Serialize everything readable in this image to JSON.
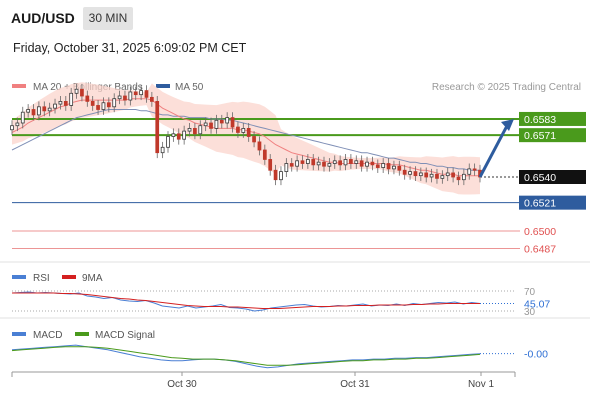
{
  "header": {
    "symbol": "AUD/USD",
    "timeframe": "30 MIN",
    "datetime": "Friday, October 31, 2025 6:09:02 PM CET"
  },
  "legend": {
    "ma20_label": "MA 20 + Bollinger Bands",
    "ma20_color": "#f08080",
    "ma50_label": "MA 50",
    "ma50_color": "#2e5c9e",
    "research": "Research © 2025 Trading Central"
  },
  "chart_data": [
    {
      "type": "candlestick",
      "title": "AUD/USD",
      "ylim": [
        0.648,
        0.66
      ],
      "x_ticks": [
        "Oct 30",
        "Oct 31",
        "Nov 1"
      ],
      "last_price": 0.654,
      "levels": [
        {
          "value": 0.6583,
          "label": "0.6583",
          "kind": "resistance",
          "color": "#4a9a1c"
        },
        {
          "value": 0.6571,
          "label": "0.6571",
          "kind": "resistance",
          "color": "#4a9a1c"
        },
        {
          "value": 0.654,
          "label": "0.6540",
          "kind": "last",
          "color": "#000000"
        },
        {
          "value": 0.6521,
          "label": "0.6521",
          "kind": "pivot",
          "color": "#2e5c9e"
        },
        {
          "value": 0.65,
          "label": "0.6500",
          "kind": "support",
          "color": "#e05050"
        },
        {
          "value": 0.6487,
          "label": "0.6487",
          "kind": "support",
          "color": "#e05050"
        }
      ],
      "closes": [
        0.6578,
        0.658,
        0.6588,
        0.659,
        0.6586,
        0.6592,
        0.6589,
        0.6591,
        0.6594,
        0.6596,
        0.6593,
        0.6602,
        0.6605,
        0.66,
        0.6596,
        0.6593,
        0.659,
        0.6595,
        0.6592,
        0.6598,
        0.66,
        0.6597,
        0.6603,
        0.6601,
        0.6604,
        0.6599,
        0.6596,
        0.6558,
        0.6562,
        0.657,
        0.6572,
        0.6568,
        0.6574,
        0.6576,
        0.6572,
        0.6578,
        0.658,
        0.6576,
        0.6582,
        0.658,
        0.6584,
        0.6577,
        0.6573,
        0.6576,
        0.657,
        0.6566,
        0.656,
        0.6553,
        0.6545,
        0.6538,
        0.6544,
        0.655,
        0.6548,
        0.6552,
        0.655,
        0.6553,
        0.6549,
        0.6551,
        0.6548,
        0.655,
        0.6552,
        0.6549,
        0.6553,
        0.655,
        0.6552,
        0.6548,
        0.6551,
        0.6549,
        0.6547,
        0.655,
        0.6546,
        0.6548,
        0.6545,
        0.6542,
        0.6544,
        0.6541,
        0.6543,
        0.654,
        0.6542,
        0.6539,
        0.6541,
        0.6543,
        0.654,
        0.6538,
        0.6542,
        0.6546,
        0.6545,
        0.654
      ],
      "ma20": [
        0.6573,
        0.6575,
        0.6577,
        0.658,
        0.6582,
        0.6584,
        0.6586,
        0.6588,
        0.659,
        0.6592,
        0.6593,
        0.6595,
        0.6596,
        0.6597,
        0.6597,
        0.6597,
        0.6597,
        0.6597,
        0.6597,
        0.6597,
        0.6597,
        0.6597,
        0.6598,
        0.6598,
        0.6598,
        0.6598,
        0.6597,
        0.6594,
        0.6591,
        0.6589,
        0.6587,
        0.6585,
        0.6583,
        0.6582,
        0.658,
        0.6579,
        0.6578,
        0.6577,
        0.6576,
        0.6576,
        0.6576,
        0.6576,
        0.6575,
        0.6575,
        0.6574,
        0.6573,
        0.6572,
        0.657,
        0.6567,
        0.6564,
        0.6562,
        0.656,
        0.6558,
        0.6557,
        0.6556,
        0.6555,
        0.6554,
        0.6553,
        0.6552,
        0.6551,
        0.6551,
        0.655,
        0.655,
        0.655,
        0.655,
        0.655,
        0.655,
        0.655,
        0.655,
        0.655,
        0.6549,
        0.6549,
        0.6549,
        0.6548,
        0.6547,
        0.6546,
        0.6545,
        0.6545,
        0.6544,
        0.6543,
        0.6542,
        0.6542,
        0.6542,
        0.6541,
        0.6541,
        0.6541,
        0.6541,
        0.6541
      ],
      "ma50": [
        0.656,
        0.6562,
        0.6564,
        0.6566,
        0.6568,
        0.657,
        0.6572,
        0.6574,
        0.6576,
        0.6578,
        0.658,
        0.6582,
        0.6584,
        0.6585,
        0.6586,
        0.6587,
        0.6588,
        0.6589,
        0.659,
        0.659,
        0.659,
        0.659,
        0.659,
        0.659,
        0.6589,
        0.6589,
        0.6588,
        0.6587,
        0.6586,
        0.6586,
        0.6585,
        0.6585,
        0.6585,
        0.6584,
        0.6584,
        0.6584,
        0.6584,
        0.6583,
        0.6583,
        0.6583,
        0.6582,
        0.6582,
        0.6581,
        0.658,
        0.6579,
        0.6578,
        0.6577,
        0.6576,
        0.6575,
        0.6574,
        0.6573,
        0.6572,
        0.6571,
        0.657,
        0.6569,
        0.6568,
        0.6567,
        0.6566,
        0.6565,
        0.6564,
        0.6563,
        0.6562,
        0.6561,
        0.656,
        0.6559,
        0.6558,
        0.6558,
        0.6557,
        0.6556,
        0.6555,
        0.6554,
        0.6554,
        0.6553,
        0.6552,
        0.6551,
        0.6551,
        0.655,
        0.655,
        0.6549,
        0.6548,
        0.6548,
        0.6547,
        0.6547,
        0.6546,
        0.6546,
        0.6545,
        0.6545,
        0.6545
      ],
      "projection_target": 0.6583
    },
    {
      "type": "line",
      "title": "RSI",
      "series": [
        {
          "name": "RSI",
          "color": "#4a7fd4",
          "values": [
            66,
            67,
            68,
            66,
            67,
            66,
            65,
            64,
            66,
            60,
            58,
            55,
            57,
            52,
            50,
            49,
            51,
            46,
            40,
            38,
            36,
            40,
            36,
            38,
            40,
            43,
            37,
            36,
            34,
            30,
            32,
            36,
            38,
            40,
            42,
            43,
            40,
            38,
            39,
            41,
            40,
            42,
            44,
            40,
            42,
            41,
            44,
            41,
            45,
            43,
            45,
            47,
            46,
            48,
            44,
            47,
            45.07
          ]
        },
        {
          "name": "9MA",
          "color": "#d42020",
          "values": [
            66,
            66,
            66,
            66,
            66,
            66,
            65,
            65,
            64,
            63,
            61,
            59,
            57,
            55,
            54,
            52,
            51,
            49,
            47,
            45,
            43,
            41,
            40,
            39,
            39,
            39,
            38,
            38,
            37,
            36,
            35,
            35,
            35,
            36,
            37,
            38,
            39,
            39,
            39,
            40,
            40,
            41,
            41,
            41,
            42,
            42,
            42,
            42,
            43,
            43,
            44,
            44,
            45,
            45,
            45,
            45,
            45
          ]
        }
      ],
      "ylim": [
        20,
        80
      ],
      "levels": [
        {
          "value": 70,
          "label": "70"
        },
        {
          "value": 30,
          "label": "30"
        }
      ],
      "last_value_label": "45.07",
      "last_value_color": "#2e6fd4"
    },
    {
      "type": "line",
      "title": "MACD",
      "series": [
        {
          "name": "MACD",
          "color": "#4a7fd4",
          "values": [
            0.0002,
            0.0003,
            0.0004,
            0.0005,
            0.0006,
            0.0007,
            0.0008,
            0.0006,
            0.0004,
            0.0002,
            -0.0001,
            -0.0004,
            -0.0007,
            -0.0009,
            -0.0011,
            -0.0012,
            -0.0012,
            -0.0011,
            -0.001,
            -0.001,
            -0.0011,
            -0.0013,
            -0.0016,
            -0.0019,
            -0.0021,
            -0.002,
            -0.0018,
            -0.0016,
            -0.0015,
            -0.0014,
            -0.0013,
            -0.0012,
            -0.0011,
            -0.0011,
            -0.001,
            -0.001,
            -0.0009,
            -0.0009,
            -0.0008,
            -0.0008,
            -0.0007,
            -0.0006,
            -0.0005,
            -0.0004,
            -0.0003
          ]
        },
        {
          "name": "MACD Signal",
          "color": "#4a9a1c",
          "values": [
            0.0001,
            0.0002,
            0.0003,
            0.0004,
            0.0005,
            0.0006,
            0.0006,
            0.0006,
            0.0005,
            0.0004,
            0.0002,
            0.0,
            -0.0002,
            -0.0004,
            -0.0006,
            -0.0008,
            -0.0009,
            -0.001,
            -0.001,
            -0.001,
            -0.0011,
            -0.0012,
            -0.0014,
            -0.0016,
            -0.0018,
            -0.0018,
            -0.0018,
            -0.0017,
            -0.0016,
            -0.0015,
            -0.0014,
            -0.0013,
            -0.0012,
            -0.0012,
            -0.0011,
            -0.0011,
            -0.001,
            -0.001,
            -0.0009,
            -0.0009,
            -0.0008,
            -0.0007,
            -0.0006,
            -0.0005,
            -0.0004
          ]
        }
      ],
      "ylim": [
        -0.0024,
        0.0012
      ],
      "last_value_label": "-0.00",
      "last_value_color": "#2e6fd4"
    }
  ]
}
